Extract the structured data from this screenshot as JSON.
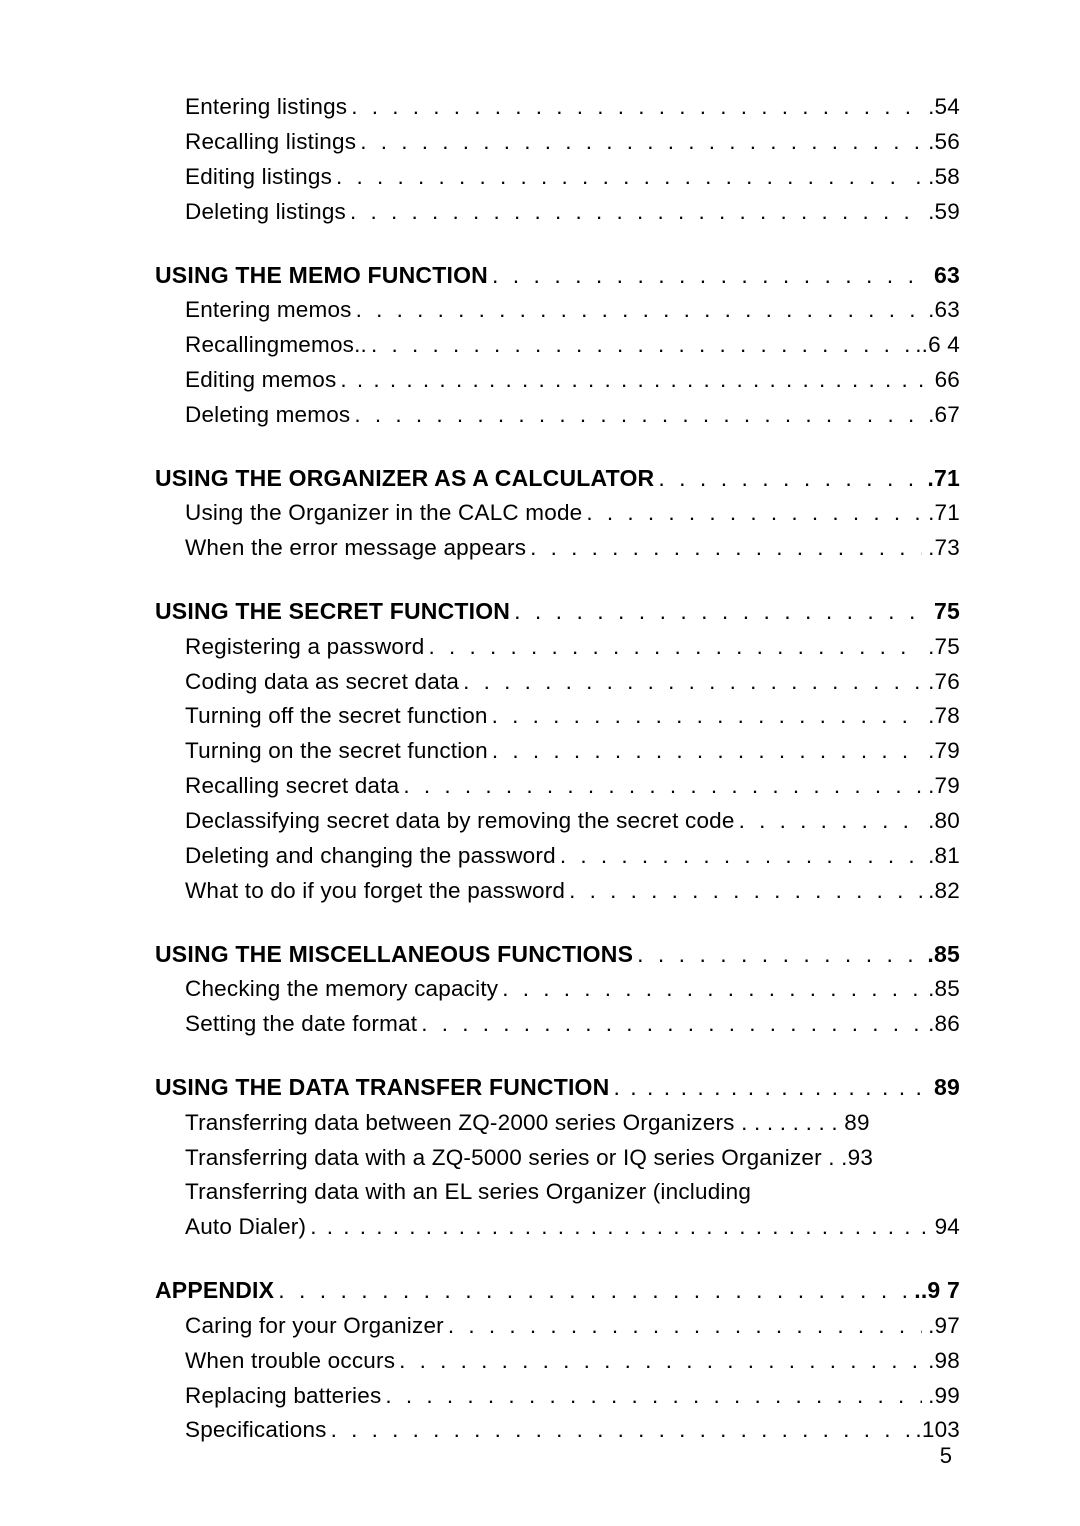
{
  "dots_long": ". . . . . . . . . . . . . . . . . . . . . . . . . . . . . . . . . . . . . . . . . . . . . . . . . . . . . . . . . . . . . . . . . . . . . . . . . . . . . . . . . . . . . . . . . . . . . . . . . . . . . . . . . . . . . .",
  "page_footer": "5",
  "sections": [
    {
      "items": [
        {
          "label": "Entering listings",
          "page": ".54",
          "type": "sub"
        },
        {
          "label": "Recalling listings",
          "page": ".56",
          "type": "sub"
        },
        {
          "label": "Editing    listings",
          "page": ". .58",
          "type": "sub"
        },
        {
          "label": "Deleting listings",
          "page": ".59",
          "type": "sub"
        }
      ]
    },
    {
      "items": [
        {
          "label": "USING THE MEMO FUNCTION",
          "page": "63",
          "type": "heading"
        },
        {
          "label": "Entering  memos",
          "page": ".63",
          "type": "sub"
        },
        {
          "label": "Recallingmemos..",
          "page": "..6  4",
          "type": "sub"
        },
        {
          "label": "Editing memos",
          "page": "66",
          "type": "sub",
          "tight": true
        },
        {
          "label": "Deleting  memos",
          "page": ".67",
          "type": "sub"
        }
      ]
    },
    {
      "items": [
        {
          "label": "USING THE ORGANIZER AS A CALCULATOR",
          "page": " .71",
          "type": "heading"
        },
        {
          "label": "Using the Organizer in the CALC mode",
          "page": ".71",
          "type": "sub"
        },
        {
          "label": "When the error message appears",
          "page": ".73",
          "type": "sub"
        }
      ]
    },
    {
      "items": [
        {
          "label": "USING THE SECRET FUNCTION",
          "page": "75",
          "type": "heading"
        },
        {
          "label": "Registering a password",
          "page": ".75",
          "type": "sub"
        },
        {
          "label": "Coding data as secret data",
          "page": ".76",
          "type": "sub"
        },
        {
          "label": "Turning off the secret function",
          "page": ".78",
          "type": "sub"
        },
        {
          "label": "Turning on the secret function",
          "page": ".79",
          "type": "sub"
        },
        {
          "label": "Recalling secret data",
          "page": ".79",
          "type": "sub"
        },
        {
          "label": "Declassifying secret data by removing the secret code",
          "page": " .80",
          "type": "sub"
        },
        {
          "label": "Deleting and changing the password",
          "page": ".81",
          "type": "sub"
        },
        {
          "label": "What to do if you forget the password",
          "page": ".82",
          "type": "sub"
        }
      ]
    },
    {
      "items": [
        {
          "label": "USING THE MISCELLANEOUS FUNCTIONS",
          "page": " .85",
          "type": "heading"
        },
        {
          "label": "Checking the memory capacity",
          "page": ".85",
          "type": "sub"
        },
        {
          "label": "Setting the date format",
          "page": ".86",
          "type": "sub"
        }
      ]
    },
    {
      "items": [
        {
          "label": "USING THE DATA TRANSFER FUNCTION",
          "page": "89",
          "type": "heading",
          "tight": true
        },
        {
          "label": "Transferring data between ZQ-2000 series Organizers .  .  .  .  .  .  . . 89",
          "page": "",
          "type": "sub",
          "noleader": true
        },
        {
          "label": "Transferring data with a ZQ-5000 series or IQ series Organizer . .93",
          "page": "",
          "type": "sub",
          "noleader": true
        },
        {
          "label": "Transferring data with an EL series Organizer (including",
          "page": "",
          "type": "sub",
          "noleader": true
        },
        {
          "label": "Auto Dialer)",
          "page": "94",
          "type": "sub",
          "tight": true
        }
      ]
    },
    {
      "items": [
        {
          "label": "APPENDIX ",
          "page": "..9 7",
          "type": "heading",
          "no_indent": true
        },
        {
          "label": "Caring for your Organizer",
          "page": " .97",
          "type": "sub"
        },
        {
          "label": "When trouble occurs",
          "page": " .98",
          "type": "sub"
        },
        {
          "label": "Replacing batteries",
          "page": " .99",
          "type": "sub"
        },
        {
          "label": "Specifications",
          "page": " .103",
          "type": "sub"
        }
      ]
    }
  ]
}
